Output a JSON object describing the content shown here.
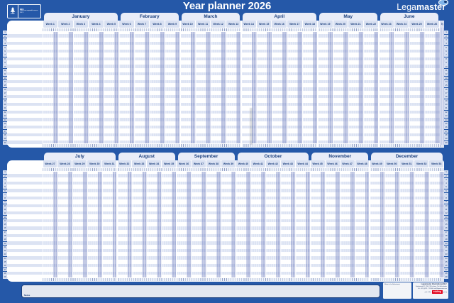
{
  "title": "Year planner 2026",
  "brand": {
    "part1": "Lega",
    "part2": "master"
  },
  "fsc": {
    "code": "FSC",
    "mix": "MIX",
    "desc": "Paper from responsible sources",
    "cert": "FSC®"
  },
  "week_prefix": "Week",
  "halves": [
    {
      "id": "jan-jun",
      "months": [
        {
          "name": "January",
          "weeks": [
            1,
            2,
            3,
            4,
            5
          ]
        },
        {
          "name": "February",
          "weeks": [
            6,
            7,
            8,
            9
          ]
        },
        {
          "name": "March",
          "weeks": [
            10,
            11,
            12,
            13
          ]
        },
        {
          "name": "April",
          "weeks": [
            14,
            15,
            16,
            17,
            18
          ]
        },
        {
          "name": "May",
          "weeks": [
            19,
            20,
            21,
            22
          ]
        },
        {
          "name": "June",
          "weeks": [
            23,
            24,
            25,
            26
          ]
        }
      ],
      "partial_week": 27,
      "row_count": 30
    },
    {
      "id": "jul-dec",
      "months": [
        {
          "name": "July",
          "weeks": [
            27,
            28,
            29,
            30,
            31
          ]
        },
        {
          "name": "August",
          "weeks": [
            32,
            33,
            34,
            35
          ]
        },
        {
          "name": "September",
          "weeks": [
            36,
            37,
            38,
            39
          ]
        },
        {
          "name": "October",
          "weeks": [
            40,
            41,
            42,
            43,
            44
          ]
        },
        {
          "name": "November",
          "weeks": [
            45,
            46,
            47,
            48
          ]
        },
        {
          "name": "December",
          "weeks": [
            49,
            50,
            51,
            52,
            53
          ]
        }
      ],
      "partial_week": null,
      "row_count": 29
    }
  ],
  "footer": {
    "notes_label": "Notes",
    "made_in": "Made in the Netherlands",
    "company": "Legamaster International B.V.",
    "address_line1": "Kwinkweerd 62, 7241 CW Lochem, The Netherlands",
    "address_line2": "Tel.: +31 (0)573 - 713 000, info@legamaster.com",
    "edding_note": "part of the",
    "edding_brand": "edding",
    "edding_suffix": "group"
  },
  "colors": {
    "background": "#2558a8",
    "navy": "#1a3e7c",
    "panel": "#e9edf8",
    "row_alt": "#dce3f3",
    "weekend": "rgba(128,142,198,0.55)",
    "edding_red": "#e2001a"
  }
}
